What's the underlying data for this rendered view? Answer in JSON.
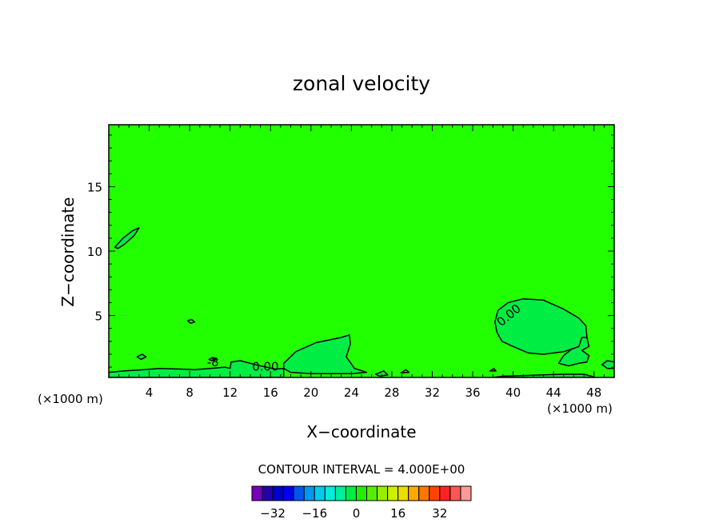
{
  "chart_data": {
    "type": "contour",
    "title": "zonal velocity",
    "xlabel": "X−coordinate",
    "ylabel": "Z−coordinate",
    "x_units": "(×1000 m)",
    "x_units_right": "(×1000 m)",
    "xlim": [
      0,
      50
    ],
    "ylim": [
      0.2,
      19.8
    ],
    "x_ticks": [
      4,
      8,
      12,
      16,
      20,
      24,
      28,
      32,
      36,
      40,
      44,
      48
    ],
    "x_tick_labels": [
      "4",
      "8",
      "12",
      "16",
      "20",
      "24",
      "28",
      "32",
      "36",
      "40",
      "44",
      "48"
    ],
    "y_ticks": [
      5,
      10,
      15
    ],
    "y_tick_labels": [
      "5",
      "10",
      "15"
    ],
    "contour_interval_text": "CONTOUR INTERVAL = 4.000E+00",
    "background_value": 4,
    "fill_colors": {
      "background": "#22ff00",
      "zero_region": "#00ee44"
    },
    "contour_labels": [
      {
        "text": "0.00",
        "x": 15.5,
        "y": 1.0,
        "rotation": 0
      },
      {
        "text": "0.00",
        "x": 39.6,
        "y": 5.0,
        "rotation": -40
      },
      {
        "text": "-8",
        "x": 10.3,
        "y": 1.35,
        "rotation": 0
      }
    ],
    "contours": [
      {
        "level": 0,
        "fill": "zero_region",
        "closed": true,
        "points": [
          [
            17.3,
            1.3
          ],
          [
            18.5,
            2.2
          ],
          [
            20.5,
            2.9
          ],
          [
            23,
            3.3
          ],
          [
            23.8,
            3.5
          ],
          [
            23.9,
            2.8
          ],
          [
            23.5,
            1.8
          ],
          [
            24.3,
            0.9
          ],
          [
            25.5,
            0.6
          ],
          [
            24,
            0.5
          ],
          [
            20,
            0.5
          ],
          [
            18,
            0.6
          ],
          [
            17.3,
            0.9
          ]
        ]
      },
      {
        "level": 0,
        "fill": "zero_region",
        "closed": true,
        "points": [
          [
            38.2,
            4.5
          ],
          [
            38.5,
            5.4
          ],
          [
            39.5,
            6.0
          ],
          [
            41,
            6.3
          ],
          [
            43,
            6.2
          ],
          [
            45,
            5.5
          ],
          [
            46.5,
            4.8
          ],
          [
            47.2,
            4.2
          ],
          [
            47.3,
            3.3
          ],
          [
            46.5,
            2.6
          ],
          [
            45,
            2.2
          ],
          [
            43,
            2.0
          ],
          [
            41.5,
            2.1
          ],
          [
            40,
            2.6
          ],
          [
            38.9,
            3.0
          ],
          [
            38.4,
            3.7
          ]
        ]
      },
      {
        "level": 0,
        "fill": "zero_region",
        "closed": true,
        "points": [
          [
            0,
            0.2
          ],
          [
            0,
            0.6
          ],
          [
            1.5,
            0.7
          ],
          [
            3.5,
            0.8
          ],
          [
            5,
            0.9
          ],
          [
            7,
            0.85
          ],
          [
            8.5,
            0.8
          ],
          [
            10,
            0.9
          ],
          [
            11.5,
            1.0
          ],
          [
            12,
            0.9
          ],
          [
            12.1,
            1.4
          ],
          [
            13,
            1.5
          ],
          [
            14,
            1.3
          ],
          [
            15,
            1.1
          ],
          [
            16.5,
            0.85
          ],
          [
            17.3,
            0.9
          ],
          [
            17.3,
            0.2
          ]
        ]
      },
      {
        "level": 0,
        "fill": "zero_region",
        "closed": true,
        "points": [
          [
            45.5,
            1.1
          ],
          [
            46.5,
            1.3
          ],
          [
            47.3,
            1.4
          ],
          [
            47.5,
            1.9
          ],
          [
            46.8,
            2.3
          ],
          [
            47.5,
            2.6
          ],
          [
            47.3,
            3.3
          ],
          [
            46.8,
            3.3
          ],
          [
            46.5,
            2.6
          ],
          [
            45.8,
            2.4
          ],
          [
            45,
            1.9
          ],
          [
            44.5,
            1.3
          ]
        ]
      },
      {
        "level": 0,
        "fill": "zero_region",
        "closed": true,
        "points": [
          [
            0.6,
            10.3
          ],
          [
            1.4,
            11.0
          ],
          [
            2.4,
            11.6
          ],
          [
            3,
            11.8
          ],
          [
            2.5,
            11.2
          ],
          [
            1.5,
            10.5
          ],
          [
            0.9,
            10.2
          ]
        ]
      },
      {
        "level": 0,
        "fill": "zero_region",
        "closed": true,
        "points": [
          [
            2.8,
            1.8
          ],
          [
            3.3,
            2.0
          ],
          [
            3.7,
            1.8
          ],
          [
            3.2,
            1.6
          ]
        ]
      },
      {
        "level": 0,
        "fill": "zero_region",
        "closed": true,
        "points": [
          [
            7.8,
            4.6
          ],
          [
            8.2,
            4.7
          ],
          [
            8.5,
            4.5
          ],
          [
            8.1,
            4.4
          ]
        ]
      },
      {
        "level": 0,
        "fill": "zero_region",
        "closed": true,
        "points": [
          [
            48.8,
            1.2
          ],
          [
            49.3,
            1.5
          ],
          [
            50,
            1.4
          ],
          [
            50,
            0.9
          ],
          [
            49.3,
            0.9
          ]
        ]
      },
      {
        "level": 0,
        "fill": "zero_region",
        "closed": true,
        "points": [
          [
            28.9,
            0.55
          ],
          [
            29.4,
            0.8
          ],
          [
            29.7,
            0.6
          ]
        ]
      },
      {
        "level": 0,
        "fill": "zero_region",
        "closed": true,
        "points": [
          [
            26.4,
            0.45
          ],
          [
            27.2,
            0.7
          ],
          [
            27.6,
            0.4
          ],
          [
            26.8,
            0.3
          ]
        ]
      },
      {
        "level": 0,
        "fill": "zero_region",
        "closed": true,
        "points": [
          [
            37.7,
            0.7
          ],
          [
            38.1,
            0.9
          ],
          [
            38.3,
            0.7
          ]
        ]
      },
      {
        "level": 0,
        "fill": "zero_region",
        "closed": true,
        "points": [
          [
            38,
            0.2
          ],
          [
            39,
            0.3
          ],
          [
            41,
            0.35
          ],
          [
            43,
            0.4
          ],
          [
            45,
            0.45
          ],
          [
            47,
            0.45
          ],
          [
            48,
            0.25
          ],
          [
            48,
            0.2
          ]
        ]
      },
      {
        "level": -8,
        "fill": "zero_region",
        "closed": true,
        "points": [
          [
            9.9,
            1.6
          ],
          [
            10.3,
            1.75
          ],
          [
            10.6,
            1.6
          ],
          [
            10.2,
            1.5
          ]
        ]
      }
    ],
    "colorbar": {
      "colors": [
        "#7700bb",
        "#2200aa",
        "#0000cc",
        "#0000ee",
        "#0055ee",
        "#0099ee",
        "#00ccee",
        "#00eedd",
        "#00ee99",
        "#00ee44",
        "#22ee00",
        "#55ee00",
        "#99ee00",
        "#ccee00",
        "#eedd00",
        "#ffaa00",
        "#ff7700",
        "#ff4400",
        "#ff2222",
        "#ff5555",
        "#ff9999"
      ],
      "tick_labels": [
        "−32",
        "−16",
        "0",
        "16",
        "32"
      ],
      "tick_values": [
        -32,
        -16,
        0,
        16,
        32
      ],
      "range": [
        -40,
        44
      ]
    }
  }
}
